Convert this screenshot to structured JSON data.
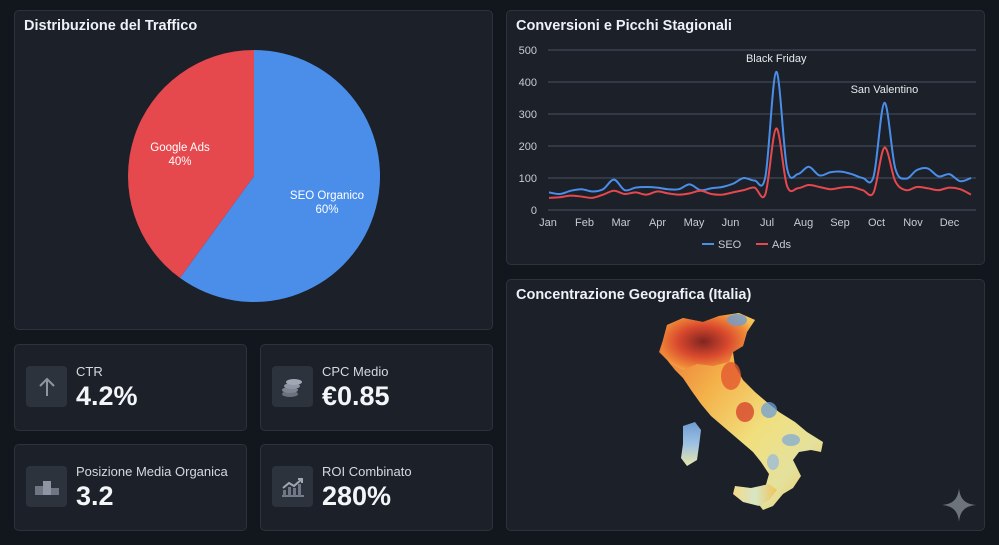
{
  "pie_panel": {
    "title": "Distribuzione del Traffico"
  },
  "line_panel": {
    "title": "Conversioni e Picchi Stagionali"
  },
  "map_panel": {
    "title": "Concentrazione Geografica (Italia)"
  },
  "kpis": [
    {
      "label": "CTR",
      "value": "4.2%",
      "icon": "arrow-up-icon"
    },
    {
      "label": "CPC Medio",
      "value": "€0.85",
      "icon": "coins-icon"
    },
    {
      "label": "Posizione Media Organica",
      "value": "3.2",
      "icon": "podium-icon"
    },
    {
      "label": "ROI Combinato",
      "value": "280%",
      "icon": "trend-chart-icon"
    }
  ],
  "colors": {
    "seo": "#4a8eea",
    "ads": "#e5484d",
    "background": "#12161d",
    "panel": "#1b2029"
  },
  "chart_data": [
    {
      "type": "pie",
      "title": "Distribuzione del Traffico",
      "slices": [
        {
          "name": "SEO Organico",
          "label": "SEO Organico",
          "pct_label": "60%",
          "value": 60,
          "color": "#4a8eea"
        },
        {
          "name": "Google Ads",
          "label": "Google Ads",
          "pct_label": "40%",
          "value": 40,
          "color": "#e5484d"
        }
      ]
    },
    {
      "type": "line",
      "title": "Conversioni e Picchi Stagionali",
      "ylim": [
        0,
        500
      ],
      "yticks": [
        "0",
        "100",
        "200",
        "300",
        "400",
        "500"
      ],
      "x_labels": [
        "Jan",
        "Feb",
        "Mar",
        "Apr",
        "May",
        "Jun",
        "Jul",
        "Aug",
        "Sep",
        "Oct",
        "Nov",
        "Dec"
      ],
      "grid": true,
      "legend_position": "bottom",
      "series": [
        {
          "name": "SEO",
          "color": "#4a8eea",
          "values": [
            55,
            50,
            60,
            65,
            58,
            65,
            95,
            62,
            70,
            72,
            70,
            65,
            65,
            80,
            62,
            68,
            72,
            82,
            100,
            92,
            105,
            432,
            130,
            112,
            135,
            108,
            118,
            120,
            112,
            100,
            105,
            335,
            130,
            98,
            125,
            130,
            105,
            112,
            90,
            100
          ]
        },
        {
          "name": "Ads",
          "color": "#e5484d",
          "values": [
            38,
            40,
            45,
            42,
            38,
            48,
            60,
            50,
            55,
            48,
            58,
            52,
            48,
            52,
            60,
            50,
            48,
            55,
            62,
            70,
            50,
            255,
            75,
            68,
            78,
            72,
            65,
            70,
            72,
            62,
            55,
            195,
            90,
            62,
            72,
            68,
            62,
            70,
            65,
            48
          ]
        }
      ],
      "annotations": [
        {
          "text": "Black Friday",
          "point_index": 21
        },
        {
          "text": "San Valentino",
          "point_index": 31
        }
      ]
    }
  ]
}
